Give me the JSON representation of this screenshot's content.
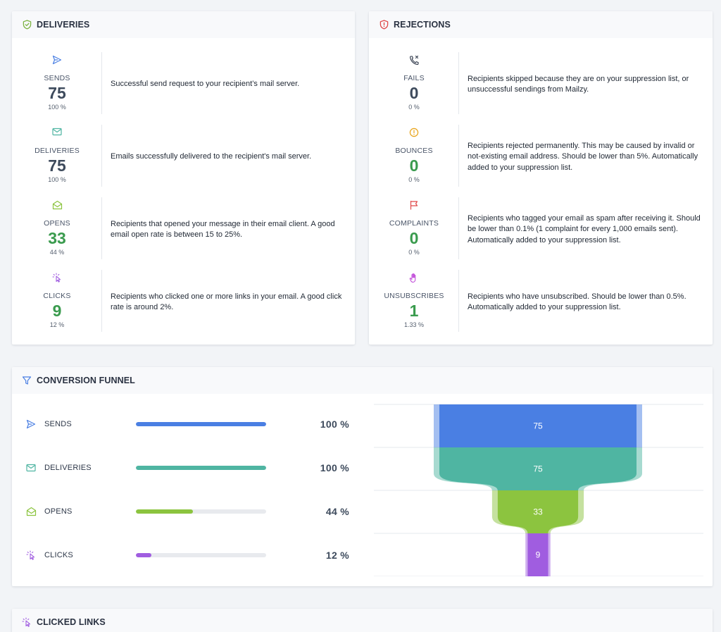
{
  "deliveries": {
    "title": "DELIVERIES",
    "header_icon": "shield-check-icon",
    "items": [
      {
        "icon": "send-icon",
        "label": "SENDS",
        "value": "75",
        "pct": "100 %",
        "desc": "Successful send request to your recipient’s mail server.",
        "highlight": false
      },
      {
        "icon": "envelope-icon",
        "label": "DELIVERIES",
        "value": "75",
        "pct": "100 %",
        "desc": "Emails successfully delivered to the recipient's mail server.",
        "highlight": false
      },
      {
        "icon": "envelope-open-icon",
        "label": "OPENS",
        "value": "33",
        "pct": "44 %",
        "desc": "Recipients that opened your message in their email client. A good email open rate is between 15 to 25%.",
        "highlight": true
      },
      {
        "icon": "cursor-click-icon",
        "label": "CLICKS",
        "value": "9",
        "pct": "12 %",
        "desc": "Recipients who clicked one or more links in your email. A good click rate is around 2%.",
        "highlight": true
      }
    ]
  },
  "rejections": {
    "title": "REJECTIONS",
    "header_icon": "shield-alert-icon",
    "items": [
      {
        "icon": "phone-x-icon",
        "label": "FAILS",
        "value": "0",
        "pct": "0 %",
        "desc": "Recipients skipped because they are on your suppression list, or unsuccessful sendings from Mailzy.",
        "highlight": false
      },
      {
        "icon": "alert-circle-icon",
        "label": "BOUNCES",
        "value": "0",
        "pct": "0 %",
        "desc": "Recipients rejected permanently. This may be caused by invalid or not-existing email address. Should be lower than 5%. Automatically added to your suppression list.",
        "highlight": true
      },
      {
        "icon": "flag-icon",
        "label": "COMPLAINTS",
        "value": "0",
        "pct": "0 %",
        "desc": "Recipients who tagged your email as spam after receiving it. Should be lower than 0.1% (1 complaint for every 1,000 emails sent). Automatically added to your suppression list.",
        "highlight": true
      },
      {
        "icon": "hand-icon",
        "label": "UNSUBSCRIBES",
        "value": "1",
        "pct": "1.33 %",
        "desc": "Recipients who have unsubscribed. Should be lower than 0.5%. Automatically added to your suppression list.",
        "highlight": true
      }
    ]
  },
  "funnel": {
    "title": "CONVERSION FUNNEL",
    "header_icon": "filter-icon",
    "rows": [
      {
        "icon": "send-icon",
        "label": "SENDS",
        "pct_text": "100 %",
        "fraction": 1.0,
        "color": "#4a7fe3"
      },
      {
        "icon": "envelope-icon",
        "label": "DELIVERIES",
        "pct_text": "100 %",
        "fraction": 1.0,
        "color": "#4fb5a2"
      },
      {
        "icon": "envelope-open-icon",
        "label": "OPENS",
        "pct_text": "44 %",
        "fraction": 0.44,
        "color": "#8cc43f"
      },
      {
        "icon": "cursor-click-icon",
        "label": "CLICKS",
        "pct_text": "12 %",
        "fraction": 0.12,
        "color": "#a05de0"
      }
    ]
  },
  "chart_data": {
    "type": "funnel",
    "categories": [
      "SENDS",
      "DELIVERIES",
      "OPENS",
      "CLICKS"
    ],
    "values": [
      75,
      75,
      33,
      9
    ],
    "colors": [
      "#4a7fe3",
      "#4fb5a2",
      "#8cc43f",
      "#a05de0"
    ]
  },
  "clicked_links": {
    "title": "CLICKED LINKS",
    "header_icon": "cursor-click-icon"
  }
}
